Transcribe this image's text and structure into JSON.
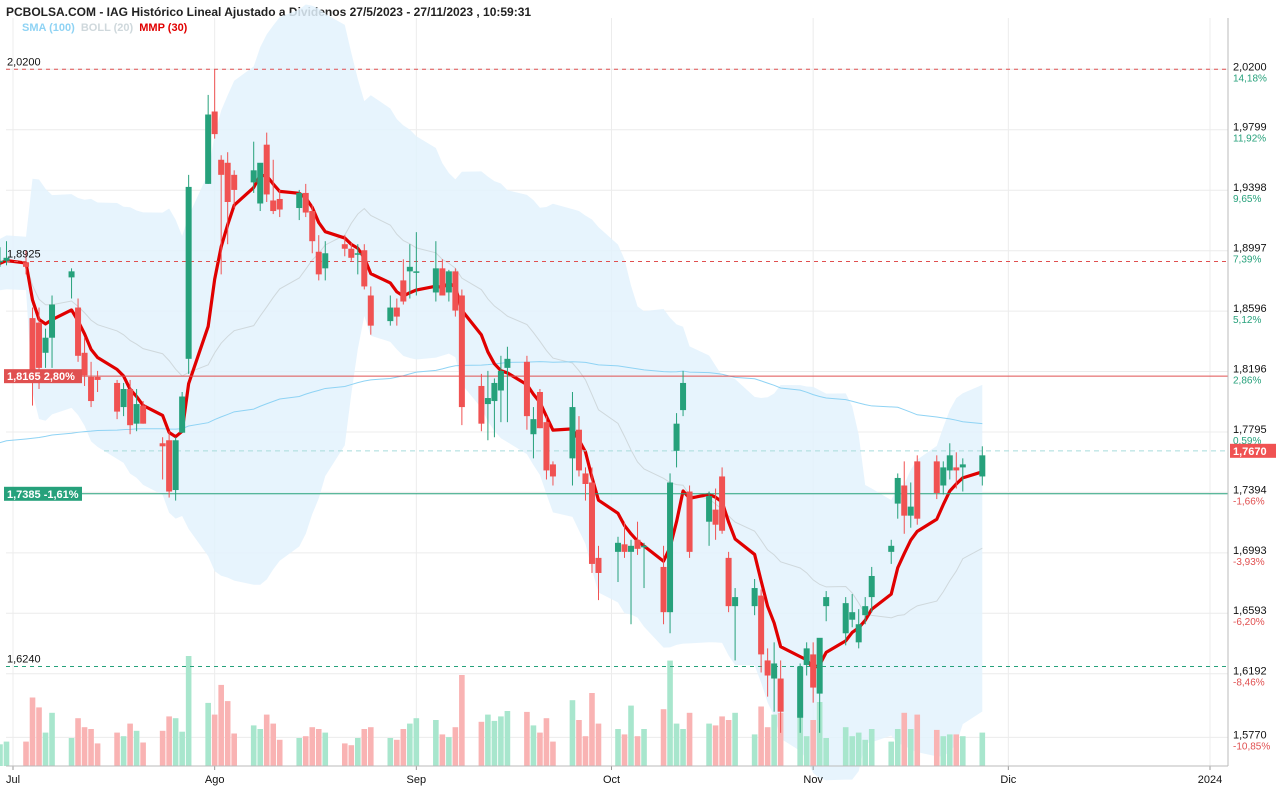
{
  "header": {
    "title": "PCBOLSA.COM - IAG Histórico Lineal Ajustado a Dividenos 27/5/2023 - 27/11/2023 , 10:59:31"
  },
  "indicators": [
    {
      "label": "SMA (100)",
      "color": "#8fd3f4"
    },
    {
      "label": "BOLL (20)",
      "color": "#cfd8dc"
    },
    {
      "label": "MMP (30)",
      "color": "#e00000"
    }
  ],
  "colors": {
    "up": "#26a17b",
    "down": "#f05252",
    "vol_up": "#a8e6cd",
    "vol_down": "#f9b3b3",
    "sma": "#8fd3f4",
    "boll_fill": "#e3f2fd",
    "mmp": "#e00000"
  },
  "chart_data": {
    "type": "candlestick",
    "title": "IAG Histórico Lineal Ajustado a Dividenos 27/5/2023 - 27/11/2023 , 10:59:31",
    "x_labels": [
      "Jul",
      "Ago",
      "Sep",
      "Oct",
      "Nov",
      "Dic",
      "2024"
    ],
    "y_ticks": [
      {
        "price": "2,0200",
        "pct": "14,18%"
      },
      {
        "price": "1,9799",
        "pct": "11,92%"
      },
      {
        "price": "1,9398",
        "pct": "9,65%"
      },
      {
        "price": "1,8997",
        "pct": "7,39%"
      },
      {
        "price": "1,8596",
        "pct": "5,12%"
      },
      {
        "price": "1,8196",
        "pct": "2,86%"
      },
      {
        "price": "1,7795",
        "pct": "0,59%"
      },
      {
        "price": "1,7394",
        "pct": "-1,66%"
      },
      {
        "price": "1,6993",
        "pct": "-3,93%"
      },
      {
        "price": "1,6593",
        "pct": "-6,20%"
      },
      {
        "price": "1,6192",
        "pct": "-8,46%"
      },
      {
        "price": "1,5770",
        "pct": "-10,85%"
      }
    ],
    "ylim": [
      1.558,
      2.054
    ],
    "reference_lines": [
      {
        "label": "2,0200",
        "value": 2.02,
        "style": "dashed",
        "color": "#e05050"
      },
      {
        "label": "1,8925",
        "value": 1.8925,
        "style": "dashed",
        "color": "#e05050"
      },
      {
        "label": "1,8165  2,80%",
        "value": 1.8165,
        "style": "solid",
        "color": "#e05050",
        "badge": true
      },
      {
        "label": "1,7385  -1,61%",
        "value": 1.7385,
        "style": "solid",
        "color": "#26a17b",
        "badge": true
      },
      {
        "label": "1,6240",
        "value": 1.624,
        "style": "dashed",
        "color": "#26a17b"
      }
    ],
    "current_price": {
      "label": "1,7670",
      "value": 1.767
    },
    "candles": [
      {
        "date": "2023-06-28",
        "o": 1.89,
        "h": 1.898,
        "l": 1.886,
        "c": 1.888
      },
      {
        "date": "2023-06-29",
        "o": 1.892,
        "h": 1.902,
        "l": 1.889,
        "c": 1.893
      },
      {
        "date": "2023-06-30",
        "o": 1.893,
        "h": 1.906,
        "l": 1.89,
        "c": 1.895
      },
      {
        "date": "2023-07-03",
        "o": 1.892,
        "h": 1.9,
        "l": 1.884,
        "c": 1.889
      },
      {
        "date": "2023-07-04",
        "o": 1.855,
        "h": 1.862,
        "l": 1.797,
        "c": 1.818
      },
      {
        "date": "2023-07-05",
        "o": 1.852,
        "h": 1.862,
        "l": 1.808,
        "c": 1.822
      },
      {
        "date": "2023-07-06",
        "o": 1.832,
        "h": 1.848,
        "l": 1.822,
        "c": 1.842
      },
      {
        "date": "2023-07-07",
        "o": 1.842,
        "h": 1.87,
        "l": 1.822,
        "c": 1.864
      },
      {
        "date": "2023-07-10",
        "o": 1.882,
        "h": 1.888,
        "l": 1.868,
        "c": 1.886
      },
      {
        "date": "2023-07-11",
        "o": 1.862,
        "h": 1.868,
        "l": 1.826,
        "c": 1.83
      },
      {
        "date": "2023-07-12",
        "o": 1.832,
        "h": 1.842,
        "l": 1.81,
        "c": 1.817
      },
      {
        "date": "2023-07-13",
        "o": 1.816,
        "h": 1.826,
        "l": 1.796,
        "c": 1.8
      },
      {
        "date": "2023-07-14",
        "o": 1.816,
        "h": 1.82,
        "l": 1.806,
        "c": 1.814
      },
      {
        "date": "2023-07-17",
        "o": 1.812,
        "h": 1.814,
        "l": 1.788,
        "c": 1.793
      },
      {
        "date": "2023-07-18",
        "o": 1.796,
        "h": 1.812,
        "l": 1.79,
        "c": 1.808
      },
      {
        "date": "2023-07-19",
        "o": 1.808,
        "h": 1.814,
        "l": 1.778,
        "c": 1.784
      },
      {
        "date": "2023-07-20",
        "o": 1.785,
        "h": 1.808,
        "l": 1.78,
        "c": 1.798
      },
      {
        "date": "2023-07-21",
        "o": 1.797,
        "h": 1.8,
        "l": 1.785,
        "c": 1.785
      },
      {
        "date": "2023-07-24",
        "o": 1.772,
        "h": 1.776,
        "l": 1.748,
        "c": 1.77
      },
      {
        "date": "2023-07-25",
        "o": 1.774,
        "h": 1.78,
        "l": 1.736,
        "c": 1.74
      },
      {
        "date": "2023-07-26",
        "o": 1.741,
        "h": 1.776,
        "l": 1.734,
        "c": 1.774
      },
      {
        "date": "2023-07-27",
        "o": 1.779,
        "h": 1.806,
        "l": 1.779,
        "c": 1.803
      },
      {
        "date": "2023-07-28",
        "o": 1.828,
        "h": 1.95,
        "l": 1.818,
        "c": 1.942
      },
      {
        "date": "2023-07-31",
        "o": 1.944,
        "h": 2.003,
        "l": 1.944,
        "c": 1.99
      },
      {
        "date": "2023-08-01",
        "o": 1.992,
        "h": 2.02,
        "l": 1.974,
        "c": 1.977
      },
      {
        "date": "2023-08-02",
        "o": 1.96,
        "h": 1.963,
        "l": 1.884,
        "c": 1.95
      },
      {
        "date": "2023-08-03",
        "o": 1.958,
        "h": 1.965,
        "l": 1.904,
        "c": 1.932
      },
      {
        "date": "2023-08-04",
        "o": 1.95,
        "h": 1.953,
        "l": 1.928,
        "c": 1.94
      },
      {
        "date": "2023-08-07",
        "o": 1.945,
        "h": 1.972,
        "l": 1.938,
        "c": 1.953
      },
      {
        "date": "2023-08-08",
        "o": 1.931,
        "h": 1.956,
        "l": 1.926,
        "c": 1.958
      },
      {
        "date": "2023-08-09",
        "o": 1.97,
        "h": 1.978,
        "l": 1.932,
        "c": 1.937
      },
      {
        "date": "2023-08-10",
        "o": 1.933,
        "h": 1.96,
        "l": 1.924,
        "c": 1.926
      },
      {
        "date": "2023-08-11",
        "o": 1.934,
        "h": 1.94,
        "l": 1.922,
        "c": 1.927
      },
      {
        "date": "2023-08-14",
        "o": 1.928,
        "h": 1.94,
        "l": 1.92,
        "c": 1.938
      },
      {
        "date": "2023-08-15",
        "o": 1.938,
        "h": 1.944,
        "l": 1.922,
        "c": 1.925
      },
      {
        "date": "2023-08-16",
        "o": 1.926,
        "h": 1.93,
        "l": 1.898,
        "c": 1.906
      },
      {
        "date": "2023-08-17",
        "o": 1.899,
        "h": 1.91,
        "l": 1.88,
        "c": 1.884
      },
      {
        "date": "2023-08-18",
        "o": 1.888,
        "h": 1.906,
        "l": 1.88,
        "c": 1.898
      },
      {
        "date": "2023-08-21",
        "o": 1.904,
        "h": 1.91,
        "l": 1.896,
        "c": 1.901
      },
      {
        "date": "2023-08-22",
        "o": 1.901,
        "h": 1.905,
        "l": 1.893,
        "c": 1.895
      },
      {
        "date": "2023-08-23",
        "o": 1.897,
        "h": 1.904,
        "l": 1.884,
        "c": 1.898
      },
      {
        "date": "2023-08-24",
        "o": 1.9,
        "h": 1.904,
        "l": 1.874,
        "c": 1.876
      },
      {
        "date": "2023-08-25",
        "o": 1.87,
        "h": 1.876,
        "l": 1.844,
        "c": 1.85
      },
      {
        "date": "2023-08-28",
        "o": 1.853,
        "h": 1.87,
        "l": 1.85,
        "c": 1.862
      },
      {
        "date": "2023-08-29",
        "o": 1.862,
        "h": 1.868,
        "l": 1.85,
        "c": 1.856
      },
      {
        "date": "2023-08-30",
        "o": 1.88,
        "h": 1.894,
        "l": 1.864,
        "c": 1.866
      },
      {
        "date": "2023-08-31",
        "o": 1.886,
        "h": 1.904,
        "l": 1.868,
        "c": 1.889
      },
      {
        "date": "2023-09-01",
        "o": 1.886,
        "h": 1.912,
        "l": 1.87,
        "c": 1.886
      },
      {
        "date": "2023-09-04",
        "o": 1.872,
        "h": 1.906,
        "l": 1.866,
        "c": 1.888
      },
      {
        "date": "2023-09-05",
        "o": 1.888,
        "h": 1.894,
        "l": 1.87,
        "c": 1.87
      },
      {
        "date": "2023-09-06",
        "o": 1.872,
        "h": 1.887,
        "l": 1.866,
        "c": 1.886
      },
      {
        "date": "2023-09-07",
        "o": 1.886,
        "h": 1.888,
        "l": 1.856,
        "c": 1.86
      },
      {
        "date": "2023-09-08",
        "o": 1.87,
        "h": 1.874,
        "l": 1.784,
        "c": 1.796
      },
      {
        "date": "2023-09-11",
        "o": 1.81,
        "h": 1.818,
        "l": 1.78,
        "c": 1.785
      },
      {
        "date": "2023-09-12",
        "o": 1.798,
        "h": 1.82,
        "l": 1.774,
        "c": 1.802
      },
      {
        "date": "2023-09-13",
        "o": 1.8,
        "h": 1.815,
        "l": 1.776,
        "c": 1.812
      },
      {
        "date": "2023-09-14",
        "o": 1.807,
        "h": 1.83,
        "l": 1.786,
        "c": 1.82
      },
      {
        "date": "2023-09-15",
        "o": 1.822,
        "h": 1.836,
        "l": 1.786,
        "c": 1.828
      },
      {
        "date": "2023-09-18",
        "o": 1.826,
        "h": 1.83,
        "l": 1.781,
        "c": 1.79
      },
      {
        "date": "2023-09-19",
        "o": 1.778,
        "h": 1.796,
        "l": 1.762,
        "c": 1.788
      },
      {
        "date": "2023-09-20",
        "o": 1.806,
        "h": 1.808,
        "l": 1.782,
        "c": 1.782
      },
      {
        "date": "2023-09-21",
        "o": 1.786,
        "h": 1.79,
        "l": 1.748,
        "c": 1.754
      },
      {
        "date": "2023-09-22",
        "o": 1.758,
        "h": 1.76,
        "l": 1.744,
        "c": 1.75
      },
      {
        "date": "2023-09-25",
        "o": 1.762,
        "h": 1.806,
        "l": 1.744,
        "c": 1.796
      },
      {
        "date": "2023-09-26",
        "o": 1.781,
        "h": 1.79,
        "l": 1.75,
        "c": 1.754
      },
      {
        "date": "2023-09-27",
        "o": 1.752,
        "h": 1.756,
        "l": 1.734,
        "c": 1.745
      },
      {
        "date": "2023-09-28",
        "o": 1.746,
        "h": 1.756,
        "l": 1.686,
        "c": 1.692
      },
      {
        "date": "2023-09-29",
        "o": 1.696,
        "h": 1.704,
        "l": 1.668,
        "c": 1.686
      },
      {
        "date": "2023-10-02",
        "o": 1.7,
        "h": 1.71,
        "l": 1.68,
        "c": 1.706
      },
      {
        "date": "2023-10-03",
        "o": 1.705,
        "h": 1.72,
        "l": 1.696,
        "c": 1.7
      },
      {
        "date": "2023-10-04",
        "o": 1.7,
        "h": 1.708,
        "l": 1.652,
        "c": 1.704
      },
      {
        "date": "2023-10-05",
        "o": 1.708,
        "h": 1.72,
        "l": 1.698,
        "c": 1.702
      },
      {
        "date": "2023-10-06",
        "o": 1.704,
        "h": 1.706,
        "l": 1.676,
        "c": 1.704
      },
      {
        "date": "2023-10-09",
        "o": 1.69,
        "h": 1.704,
        "l": 1.652,
        "c": 1.66
      },
      {
        "date": "2023-10-10",
        "o": 1.66,
        "h": 1.752,
        "l": 1.646,
        "c": 1.746
      },
      {
        "date": "2023-10-11",
        "o": 1.767,
        "h": 1.792,
        "l": 1.756,
        "c": 1.785
      },
      {
        "date": "2023-10-12",
        "o": 1.794,
        "h": 1.82,
        "l": 1.79,
        "c": 1.812
      },
      {
        "date": "2023-10-13",
        "o": 1.74,
        "h": 1.744,
        "l": 1.696,
        "c": 1.7
      },
      {
        "date": "2023-10-16",
        "o": 1.72,
        "h": 1.74,
        "l": 1.704,
        "c": 1.737
      },
      {
        "date": "2023-10-17",
        "o": 1.728,
        "h": 1.742,
        "l": 1.708,
        "c": 1.718
      },
      {
        "date": "2023-10-18",
        "o": 1.75,
        "h": 1.756,
        "l": 1.712,
        "c": 1.714
      },
      {
        "date": "2023-10-19",
        "o": 1.696,
        "h": 1.7,
        "l": 1.66,
        "c": 1.664
      },
      {
        "date": "2023-10-20",
        "o": 1.664,
        "h": 1.676,
        "l": 1.628,
        "c": 1.67
      },
      {
        "date": "2023-10-23",
        "o": 1.664,
        "h": 1.682,
        "l": 1.658,
        "c": 1.676
      },
      {
        "date": "2023-10-24",
        "o": 1.671,
        "h": 1.675,
        "l": 1.62,
        "c": 1.632
      },
      {
        "date": "2023-10-25",
        "o": 1.628,
        "h": 1.636,
        "l": 1.604,
        "c": 1.618
      },
      {
        "date": "2023-10-26",
        "o": 1.616,
        "h": 1.64,
        "l": 1.594,
        "c": 1.626
      },
      {
        "date": "2023-10-27",
        "o": 1.616,
        "h": 1.628,
        "l": 1.58,
        "c": 1.594
      },
      {
        "date": "2023-10-30",
        "o": 1.59,
        "h": 1.626,
        "l": 1.58,
        "c": 1.624
      },
      {
        "date": "2023-10-31",
        "o": 1.625,
        "h": 1.64,
        "l": 1.618,
        "c": 1.636
      },
      {
        "date": "2023-11-01",
        "o": 1.632,
        "h": 1.64,
        "l": 1.6,
        "c": 1.61
      },
      {
        "date": "2023-11-02",
        "o": 1.606,
        "h": 1.64,
        "l": 1.58,
        "c": 1.643
      },
      {
        "date": "2023-11-03",
        "o": 1.664,
        "h": 1.674,
        "l": 1.654,
        "c": 1.67
      },
      {
        "date": "2023-11-06",
        "o": 1.646,
        "h": 1.67,
        "l": 1.638,
        "c": 1.666
      },
      {
        "date": "2023-11-07",
        "o": 1.655,
        "h": 1.672,
        "l": 1.65,
        "c": 1.66
      },
      {
        "date": "2023-11-08",
        "o": 1.64,
        "h": 1.662,
        "l": 1.636,
        "c": 1.652
      },
      {
        "date": "2023-11-09",
        "o": 1.658,
        "h": 1.67,
        "l": 1.652,
        "c": 1.664
      },
      {
        "date": "2023-11-10",
        "o": 1.67,
        "h": 1.69,
        "l": 1.66,
        "c": 1.684
      },
      {
        "date": "2023-11-13",
        "o": 1.7,
        "h": 1.708,
        "l": 1.692,
        "c": 1.704
      },
      {
        "date": "2023-11-14",
        "o": 1.732,
        "h": 1.752,
        "l": 1.722,
        "c": 1.749
      },
      {
        "date": "2023-11-15",
        "o": 1.744,
        "h": 1.76,
        "l": 1.712,
        "c": 1.724
      },
      {
        "date": "2023-11-16",
        "o": 1.724,
        "h": 1.746,
        "l": 1.716,
        "c": 1.73
      },
      {
        "date": "2023-11-17",
        "o": 1.76,
        "h": 1.764,
        "l": 1.718,
        "c": 1.722
      },
      {
        "date": "2023-11-20",
        "o": 1.76,
        "h": 1.764,
        "l": 1.735,
        "c": 1.739
      },
      {
        "date": "2023-11-21",
        "o": 1.744,
        "h": 1.76,
        "l": 1.738,
        "c": 1.756
      },
      {
        "date": "2023-11-22",
        "o": 1.754,
        "h": 1.772,
        "l": 1.748,
        "c": 1.764
      },
      {
        "date": "2023-11-23",
        "o": 1.756,
        "h": 1.766,
        "l": 1.742,
        "c": 1.754
      },
      {
        "date": "2023-11-24",
        "o": 1.756,
        "h": 1.762,
        "l": 1.74,
        "c": 1.758
      },
      {
        "date": "2023-11-27",
        "o": 1.75,
        "h": 1.77,
        "l": 1.744,
        "c": 1.764
      }
    ]
  }
}
